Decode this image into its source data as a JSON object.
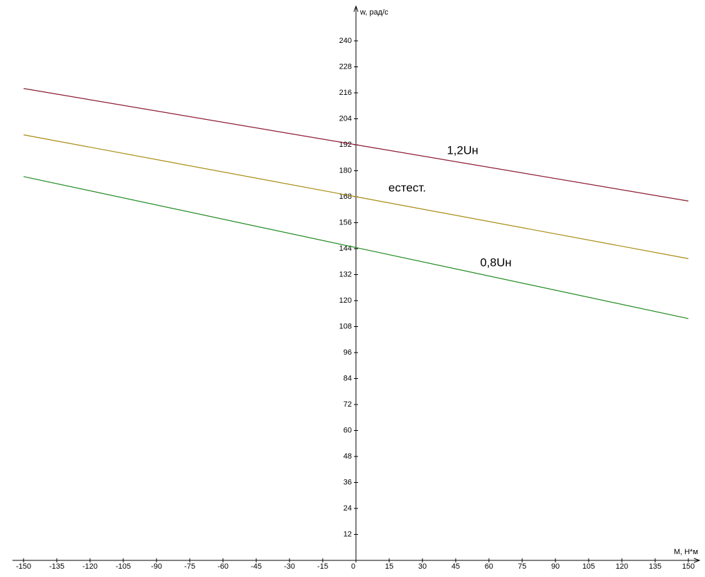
{
  "chart_data": {
    "type": "line",
    "x_label": "M, H*м",
    "y_label": "w, рад/с",
    "x": [
      -150,
      0,
      150
    ],
    "series": [
      {
        "name": "1,2Uн",
        "color": "#8b1a2e",
        "values": [
          218,
          192,
          166
        ]
      },
      {
        "name": "естест.",
        "color": "#a88a10",
        "values": [
          196.6,
          168,
          139.4
        ]
      },
      {
        "name": "0,8Uн",
        "color": "#1f8a1f",
        "values": [
          177.3,
          144.5,
          111.7
        ]
      }
    ],
    "xlim": [
      -155,
      155
    ],
    "ylim": [
      0,
      256
    ],
    "xticks": [
      -150,
      -135,
      -120,
      -105,
      -90,
      -75,
      -60,
      -45,
      -30,
      -15,
      0,
      15,
      30,
      45,
      60,
      75,
      90,
      105,
      120,
      135,
      150
    ],
    "yticks": [
      12,
      24,
      36,
      48,
      60,
      72,
      84,
      96,
      108,
      120,
      132,
      144,
      156,
      168,
      180,
      192,
      204,
      216,
      228,
      240
    ],
    "grid": false
  }
}
